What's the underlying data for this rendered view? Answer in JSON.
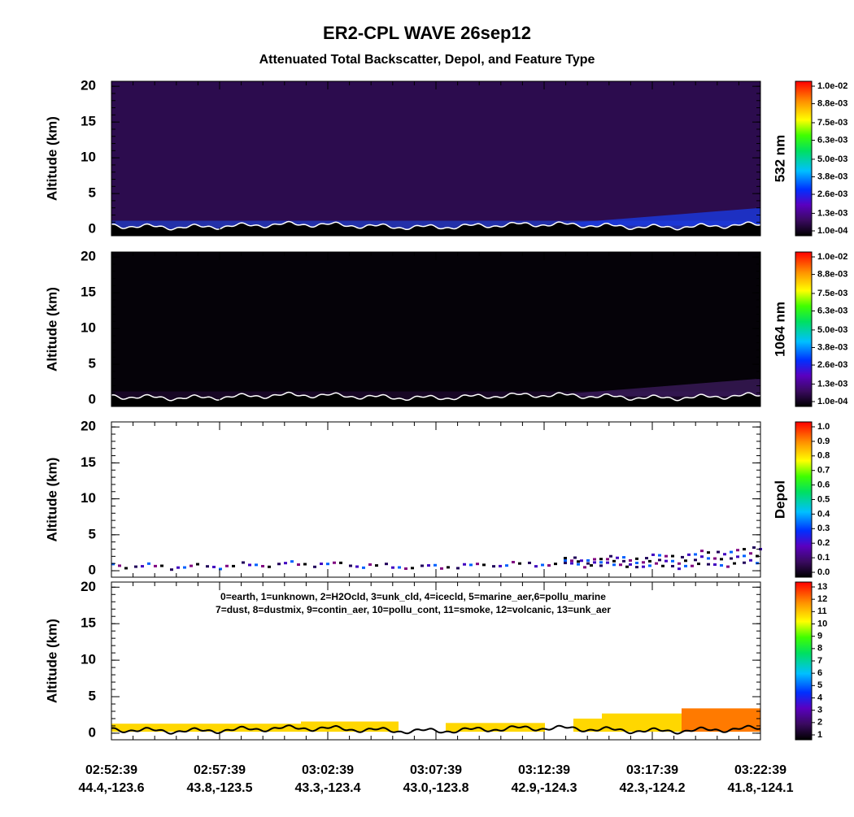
{
  "title": "ER2-CPL WAVE 26sep12",
  "subtitle": "Attenuated Total Backscatter, Depol, and Feature Type",
  "time_ticks": [
    "02:52:39",
    "02:57:39",
    "03:02:39",
    "03:07:39",
    "03:12:39",
    "03:17:39",
    "03:22:39"
  ],
  "position_ticks": [
    "44.4,-123.6",
    "43.8,-123.5",
    "43.3,-123.4",
    "43.0,-123.8",
    "42.9,-124.3",
    "42.3,-124.2",
    "41.8,-124.1"
  ],
  "chart_data": [
    {
      "type": "curtain",
      "ylabel": "Altitude (km)",
      "colorbar_label": "532 nm",
      "ylim": [
        -0.9,
        20.7
      ],
      "yticks": [
        0,
        5,
        10,
        15,
        20
      ],
      "clim": [
        0.0001,
        0.01
      ],
      "cticks": [
        {
          "value": 0.0001,
          "label": "1.0e-04"
        },
        {
          "value": 0.0013,
          "label": "1.3e-03"
        },
        {
          "value": 0.0026,
          "label": "2.6e-03"
        },
        {
          "value": 0.0038,
          "label": "3.8e-03"
        },
        {
          "value": 0.005,
          "label": "5.0e-03"
        },
        {
          "value": 0.0063,
          "label": "6.3e-03"
        },
        {
          "value": 0.0075,
          "label": "7.5e-03"
        },
        {
          "value": 0.0088,
          "label": "8.8e-03"
        },
        {
          "value": 0.01,
          "label": "1.0e-02"
        }
      ]
    },
    {
      "type": "curtain",
      "ylabel": "Altitude (km)",
      "colorbar_label": "1064 nm",
      "ylim": [
        -0.9,
        20.7
      ],
      "yticks": [
        0,
        5,
        10,
        15,
        20
      ],
      "clim": [
        0.0001,
        0.01
      ],
      "cticks": [
        {
          "value": 0.0001,
          "label": "1.0e-04"
        },
        {
          "value": 0.0013,
          "label": "1.3e-03"
        },
        {
          "value": 0.0026,
          "label": "2.6e-03"
        },
        {
          "value": 0.0038,
          "label": "3.8e-03"
        },
        {
          "value": 0.005,
          "label": "5.0e-03"
        },
        {
          "value": 0.0063,
          "label": "6.3e-03"
        },
        {
          "value": 0.0075,
          "label": "7.5e-03"
        },
        {
          "value": 0.0088,
          "label": "8.8e-03"
        },
        {
          "value": 0.01,
          "label": "1.0e-02"
        }
      ]
    },
    {
      "type": "curtain",
      "ylabel": "Altitude (km)",
      "colorbar_label": "Depol",
      "ylim": [
        -0.9,
        20.7
      ],
      "yticks": [
        0,
        5,
        10,
        15,
        20
      ],
      "clim": [
        0,
        1
      ],
      "cticks": [
        {
          "value": 0,
          "label": "0.0"
        },
        0.1,
        0.2,
        0.3,
        0.4,
        0.5,
        0.6,
        0.7,
        0.8,
        0.9,
        {
          "value": 1,
          "label": "1.0"
        }
      ]
    },
    {
      "type": "curtain",
      "ylabel": "Altitude (km)",
      "legend": [
        "0=earth, 1=unknown, 2=H2Ocld, 3=unk_cld, 4=icecld, 5=marine_aer,6=pollu_marine",
        "7=dust, 8=dustmix, 9=contin_aer, 10=pollu_cont, 11=smoke, 12=volcanic, 13=unk_aer"
      ],
      "ylim": [
        -0.9,
        20.7
      ],
      "yticks": [
        0,
        5,
        10,
        15,
        20
      ],
      "clim": [
        1,
        13
      ],
      "cticks": [
        1,
        2,
        3,
        4,
        5,
        6,
        7,
        8,
        9,
        10,
        11,
        12,
        13
      ]
    }
  ]
}
